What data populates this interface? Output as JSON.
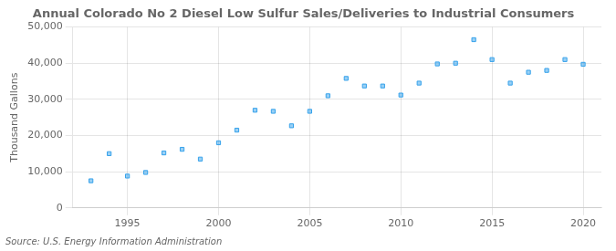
{
  "chart_data": {
    "type": "scatter",
    "title": "Annual Colorado No 2 Diesel Low Sulfur Sales/Deliveries to Industrial Consumers",
    "y_label": "Thousand Gallons",
    "annotations": [
      "Source: U.S. Energy Information Administration"
    ],
    "x": [
      1993,
      1994,
      1995,
      1996,
      1997,
      1998,
      1999,
      2000,
      2001,
      2002,
      2003,
      2004,
      2005,
      2006,
      2007,
      2008,
      2009,
      2010,
      2011,
      2012,
      2013,
      2014,
      2015,
      2016,
      2017,
      2018,
      2019,
      2020
    ],
    "values": [
      7500,
      15000,
      8800,
      9800,
      15200,
      16200,
      13500,
      18000,
      21500,
      27000,
      26700,
      22700,
      26700,
      31000,
      35800,
      33700,
      33700,
      31200,
      34500,
      39800,
      40000,
      46500,
      41000,
      34500,
      37500,
      38000,
      41000,
      39700
    ],
    "marker": "square",
    "xlim": [
      1992.0,
      2021.0
    ],
    "xticks": [
      1995,
      2000,
      2005,
      2010,
      2015,
      2020
    ],
    "ylim": [
      0,
      50000
    ],
    "yticks": [
      0,
      {
        "value": 10000,
        "label": "10,000"
      },
      {
        "value": 20000,
        "label": "20,000"
      },
      {
        "value": 30000,
        "label": "30,000"
      },
      {
        "value": 40000,
        "label": "40,000"
      },
      {
        "value": 50000,
        "label": "50,000"
      }
    ],
    "grid": true
  }
}
